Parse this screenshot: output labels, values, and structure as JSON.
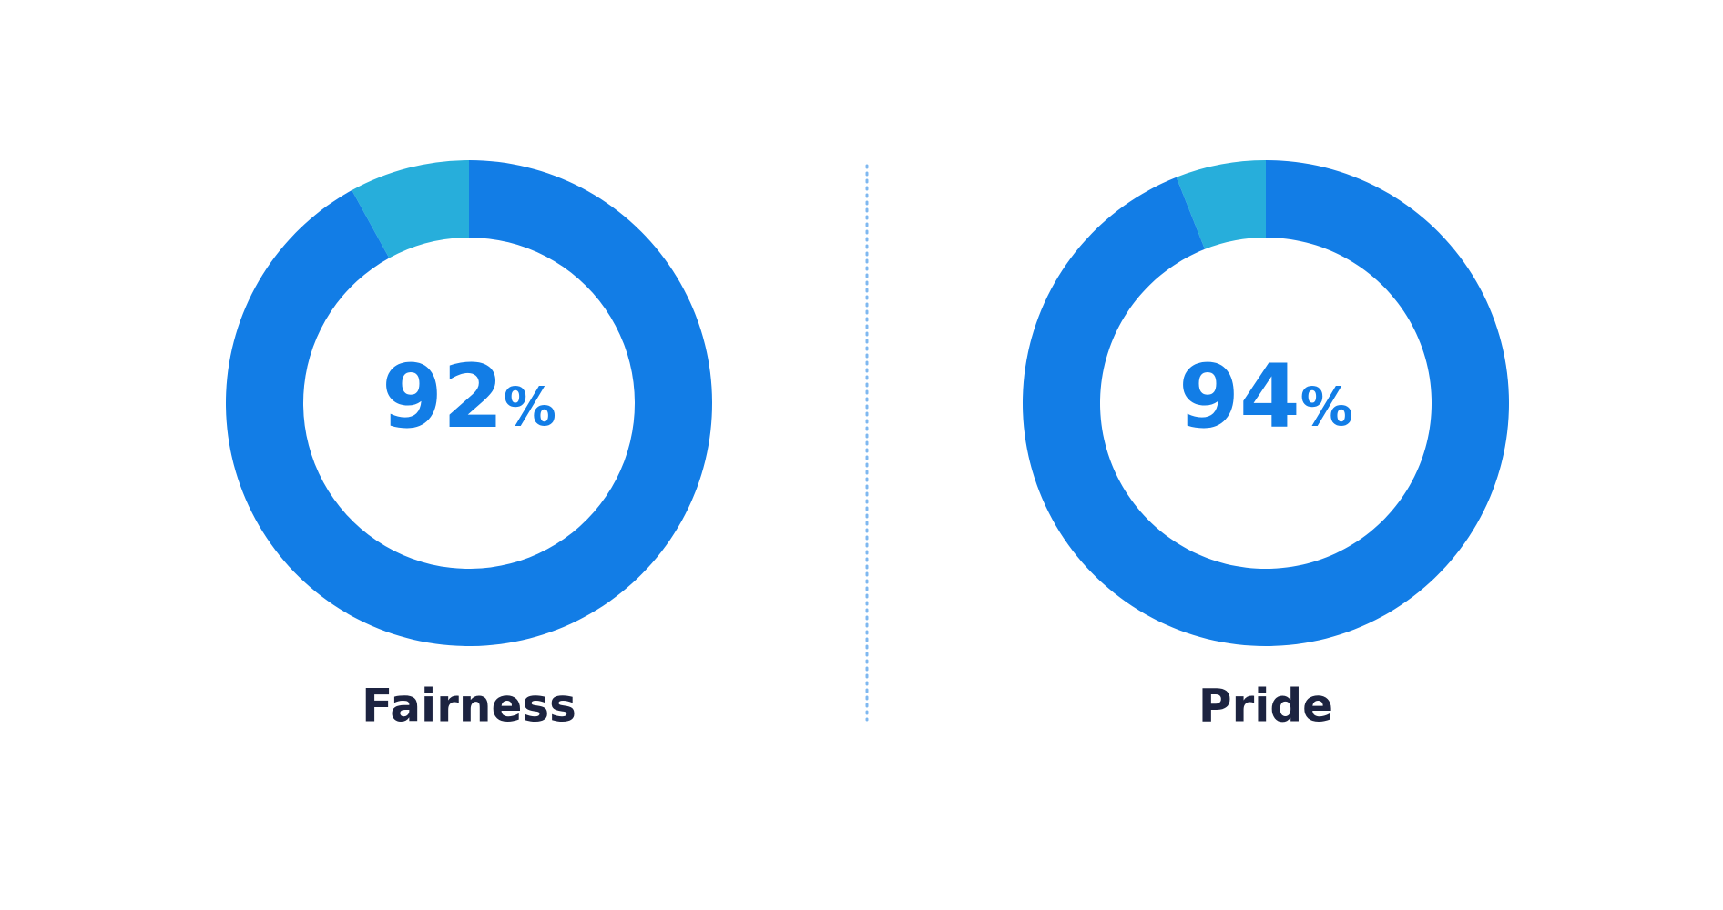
{
  "chart_data": [
    {
      "type": "donut",
      "title": "Fairness",
      "categories": [
        null,
        null
      ],
      "values": [
        92,
        8
      ],
      "value_labels": [
        "92%",
        null
      ],
      "colors": [
        "#127de6",
        "#27aedb"
      ]
    },
    {
      "type": "donut",
      "title": "Pride",
      "categories": [
        null,
        null
      ],
      "values": [
        94,
        6
      ],
      "value_labels": [
        "94%",
        null
      ],
      "colors": [
        "#127de6",
        "#27aedb"
      ]
    }
  ]
}
